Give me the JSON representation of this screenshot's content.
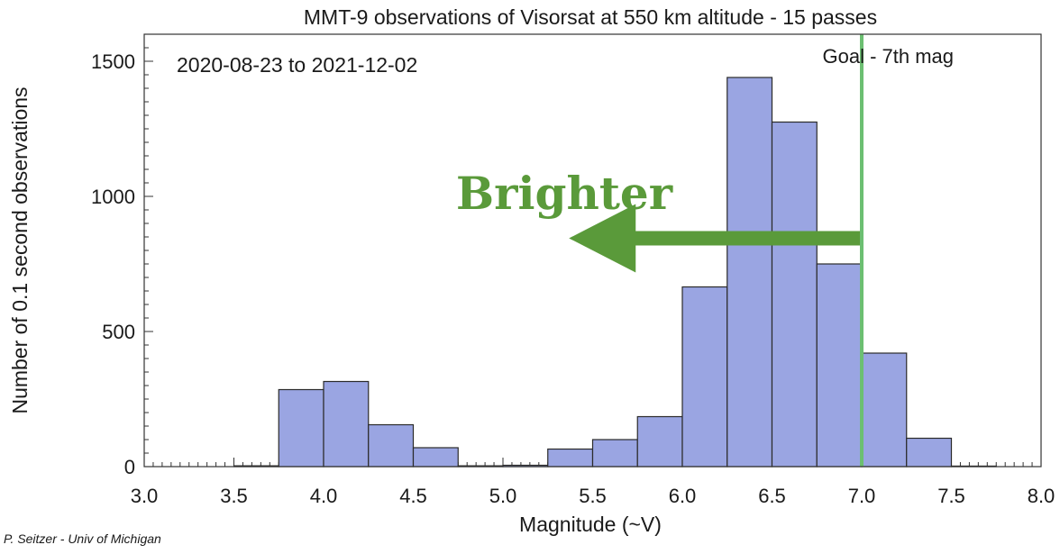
{
  "credit": "P. Seitzer - Univ of Michigan",
  "chart_data": {
    "type": "bar",
    "subtype": "histogram",
    "title": "MMT-9 observations of Visorsat at 550 km altitude - 15 passes",
    "xlabel": "Magnitude (~V)",
    "ylabel": "Number of 0.1 second observations",
    "xlim": [
      3.0,
      8.0
    ],
    "ylim": [
      0,
      1600
    ],
    "xticks": [
      "3.0",
      "3.5",
      "4.0",
      "4.5",
      "5.0",
      "5.5",
      "6.0",
      "6.5",
      "7.0",
      "7.5",
      "8.0"
    ],
    "yticks": [
      "0",
      "500",
      "1000",
      "1500"
    ],
    "bin_edges": [
      3.5,
      3.75,
      4.0,
      4.25,
      4.5,
      4.75,
      5.0,
      5.25,
      5.5,
      5.75,
      6.0,
      6.25,
      6.5,
      6.75,
      7.0,
      7.25,
      7.5,
      7.75
    ],
    "values": [
      3,
      285,
      315,
      155,
      70,
      3,
      5,
      65,
      100,
      185,
      665,
      1440,
      1275,
      750,
      420,
      105,
      2
    ],
    "bar_color": "#9aa5e2",
    "bar_edge_color": "#2b2b2b",
    "date_range_label": "2020-08-23 to 2021-12-02",
    "goal_line": {
      "x": 7.0,
      "label": "Goal - 7th mag",
      "color": "#6cbf72"
    },
    "annotation": {
      "text": "Brighter",
      "color": "#5a9a3a",
      "arrow_from": 7.0,
      "arrow_to": 5.75,
      "arrow_y": 845
    }
  }
}
